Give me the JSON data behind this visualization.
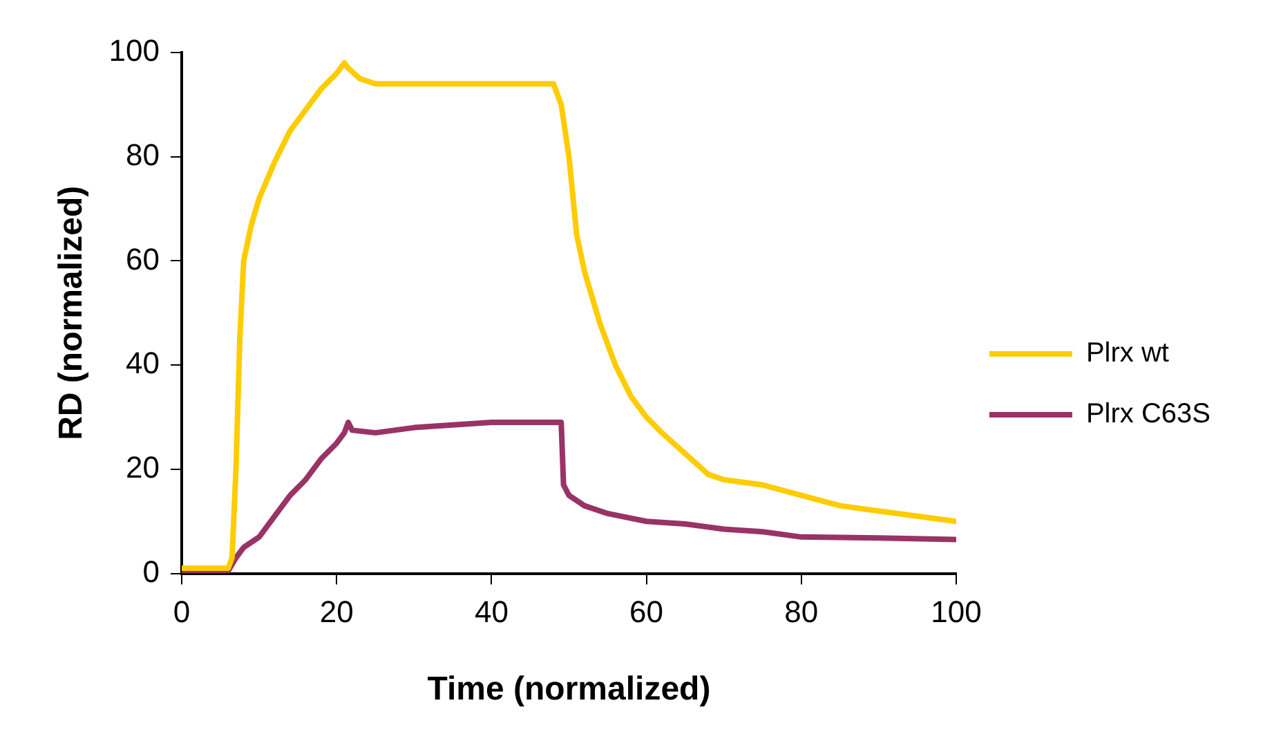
{
  "chart_data": {
    "type": "line",
    "xlabel": "Time (normalized)",
    "ylabel": "RD (normalized)",
    "xlim": [
      0,
      100
    ],
    "xticks": [
      0,
      20,
      40,
      60,
      80,
      100
    ],
    "ylim": [
      0,
      100
    ],
    "yticks": [
      0,
      20,
      40,
      60,
      80,
      100
    ],
    "grid": false,
    "legend": "right",
    "marker": "none",
    "line_style": "solid",
    "series": [
      {
        "name": "Plrx wt",
        "color": "#ffcc00",
        "x": [
          0,
          3,
          6,
          6.5,
          7,
          7.5,
          8,
          9,
          10,
          12,
          14,
          16,
          18,
          20,
          21,
          21.5,
          23,
          25,
          30,
          48,
          49,
          50,
          51,
          52,
          54,
          56,
          58,
          60,
          62,
          65,
          68,
          70,
          75,
          80,
          85,
          90,
          95,
          100
        ],
        "values": [
          1,
          1,
          1,
          3,
          20,
          45,
          60,
          67,
          72,
          79,
          85,
          89,
          93,
          96,
          98,
          97,
          95,
          94,
          94,
          94,
          90,
          80,
          65,
          58,
          48,
          40,
          34,
          30,
          27,
          23,
          19,
          18,
          17,
          15,
          13,
          12,
          11,
          10
        ]
      },
      {
        "name": "Plrx C63S",
        "color": "#993366",
        "x": [
          0,
          3,
          6,
          7,
          8,
          10,
          12,
          14,
          16,
          18,
          20,
          21,
          21.5,
          22,
          25,
          30,
          40,
          48,
          49,
          49.3,
          50,
          52,
          55,
          60,
          65,
          70,
          75,
          80,
          90,
          100
        ],
        "values": [
          0.5,
          0.5,
          0.5,
          3,
          5,
          7,
          11,
          15,
          18,
          22,
          25,
          27,
          29,
          27.5,
          27,
          28,
          29,
          29,
          29,
          17,
          15,
          13,
          11.5,
          10,
          9.5,
          8.5,
          8,
          7,
          6.8,
          6.5
        ]
      }
    ]
  }
}
